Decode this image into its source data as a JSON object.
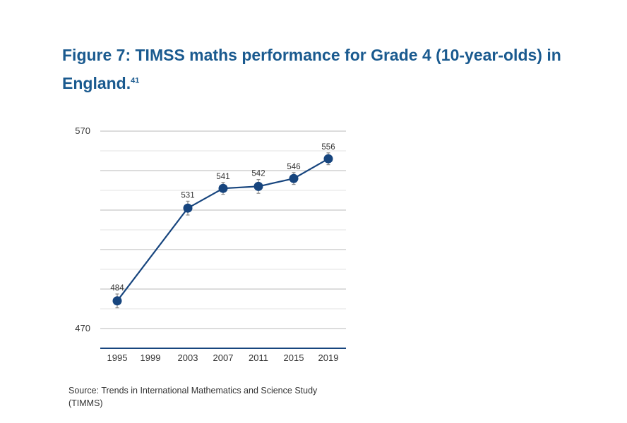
{
  "title": "Figure 7: TIMSS maths performance for Grade 4 (10-year-olds) in England.",
  "title_superscript": "41",
  "source": "Source: Trends in International Mathematics and Science Study (TIMMS)",
  "chart_data": {
    "type": "line",
    "categories": [
      "1995",
      "1999",
      "2003",
      "2007",
      "2011",
      "2015",
      "2019"
    ],
    "series": [
      {
        "values": [
          484,
          null,
          531,
          541,
          542,
          546,
          556
        ],
        "data_labels": [
          "484",
          "",
          "531",
          "541",
          "542",
          "546",
          "556"
        ],
        "error_bars": [
          3.5,
          null,
          3.5,
          3,
          3.5,
          3,
          3
        ],
        "color": "#17457e"
      }
    ],
    "y_tick_labels": [
      "470",
      "570"
    ],
    "ylim": [
      470,
      570
    ],
    "grid": true,
    "colors": {
      "line": "#17457e",
      "grid": "#cfcfcf",
      "axis": "#17457e",
      "errorbar": "#888888"
    }
  }
}
